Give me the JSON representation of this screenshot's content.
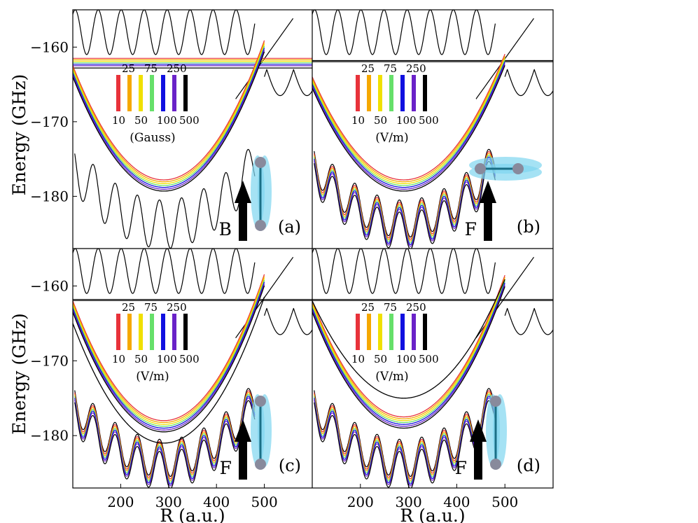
{
  "figure": {
    "ylabel": "Energy (GHz)",
    "xlabel": "R (a.u.)",
    "x_ticks": [
      200,
      300,
      400,
      500
    ],
    "y_ticks": [
      -160,
      -170,
      -180
    ]
  },
  "legend": {
    "upper_values": [
      "25",
      "75",
      "250"
    ],
    "lower_values": [
      "10",
      "50",
      "100",
      "500"
    ],
    "colors": [
      "#e8323a",
      "#f5a800",
      "#f0e000",
      "#66e06a",
      "#1010e0",
      "#6a22c8",
      "#000000"
    ]
  },
  "chart_data": [
    {
      "type": "line",
      "panel": "(a)",
      "field_label": "B",
      "legend_unit": "(Gauss)",
      "field_values": [
        10,
        25,
        50,
        75,
        100,
        250,
        500
      ],
      "molecule_orientation": "vertical",
      "xlim": [
        100,
        600
      ],
      "ylim": [
        -187,
        -155
      ],
      "xlabel": "",
      "ylabel": "Energy (GHz)",
      "series": [
        {
          "name": "potential well",
          "description": "parabolic well",
          "x": [
            100,
            200,
            300,
            400,
            500
          ],
          "y": [
            -162.5,
            -173.5,
            -177.8,
            -173.0,
            -162.0
          ]
        },
        {
          "name": "flat threshold band",
          "x": [
            100,
            600
          ],
          "y": [
            -161.5,
            -161.5
          ]
        }
      ]
    },
    {
      "type": "line",
      "panel": "(b)",
      "field_label": "F",
      "legend_unit": "(V/m)",
      "field_values": [
        10,
        25,
        50,
        75,
        100,
        250,
        500
      ],
      "molecule_orientation": "horizontal",
      "xlim": [
        100,
        600
      ],
      "ylim": [
        -187,
        -155
      ],
      "xlabel": "",
      "ylabel": "",
      "series": [
        {
          "name": "potential well",
          "x": [
            100,
            200,
            300,
            400,
            500
          ],
          "y": [
            -164.0,
            -174.5,
            -177.8,
            -173.0,
            -162.0
          ]
        },
        {
          "name": "flat threshold band",
          "x": [
            100,
            600
          ],
          "y": [
            -161.8,
            -161.8
          ]
        }
      ]
    },
    {
      "type": "line",
      "panel": "(c)",
      "field_label": "F",
      "legend_unit": "(V/m)",
      "field_values": [
        10,
        25,
        50,
        75,
        100,
        250,
        500
      ],
      "molecule_orientation": "vertical",
      "xlim": [
        100,
        600
      ],
      "ylim": [
        -187,
        -155
      ],
      "xlabel": "R (a.u.)",
      "ylabel": "Energy (GHz)",
      "series": [
        {
          "name": "potential well (low field)",
          "x": [
            100,
            200,
            300,
            400,
            500
          ],
          "y": [
            -162.0,
            -174.0,
            -178.0,
            -173.0,
            -162.0
          ]
        },
        {
          "name": "potential well (500 V/m)",
          "x": [
            100,
            200,
            300,
            400,
            500
          ],
          "y": [
            -165.0,
            -177.0,
            -181.0,
            -176.0,
            -162.0
          ]
        },
        {
          "name": "flat threshold band",
          "x": [
            100,
            600
          ],
          "y": [
            -161.8,
            -161.8
          ]
        }
      ]
    },
    {
      "type": "line",
      "panel": "(d)",
      "field_label": "F",
      "legend_unit": "(V/m)",
      "field_values": [
        10,
        25,
        50,
        75,
        100,
        250,
        500
      ],
      "molecule_orientation": "vertical",
      "xlim": [
        100,
        600
      ],
      "ylim": [
        -187,
        -155
      ],
      "xlabel": "R (a.u.)",
      "ylabel": "",
      "series": [
        {
          "name": "potential well (low field)",
          "x": [
            100,
            200,
            300,
            400,
            500
          ],
          "y": [
            -162.0,
            -173.0,
            -177.5,
            -173.0,
            -162.0
          ]
        },
        {
          "name": "potential well (500 V/m)",
          "x": [
            100,
            200,
            300,
            400,
            500
          ],
          "y": [
            -162.0,
            -171.0,
            -175.0,
            -171.0,
            -162.0
          ]
        },
        {
          "name": "flat threshold band",
          "x": [
            100,
            600
          ],
          "y": [
            -161.8,
            -161.8
          ]
        }
      ]
    }
  ]
}
